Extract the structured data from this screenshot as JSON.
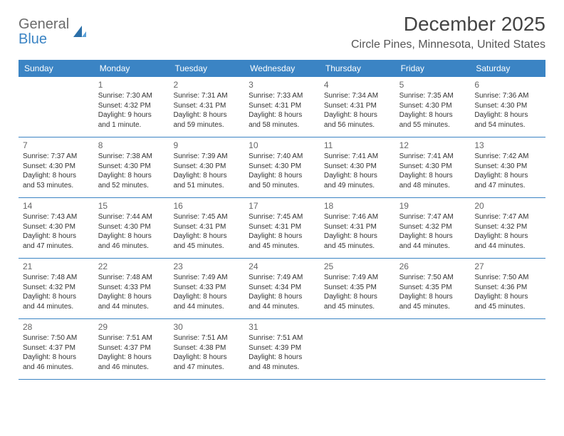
{
  "logo": {
    "gray": "General",
    "blue": "Blue"
  },
  "title": "December 2025",
  "location": "Circle Pines, Minnesota, United States",
  "header_bg": "#3b84c4",
  "dow": [
    "Sunday",
    "Monday",
    "Tuesday",
    "Wednesday",
    "Thursday",
    "Friday",
    "Saturday"
  ],
  "weeks": [
    [
      null,
      {
        "n": "1",
        "sr": "Sunrise: 7:30 AM",
        "ss": "Sunset: 4:32 PM",
        "dl": "Daylight: 9 hours and 1 minute."
      },
      {
        "n": "2",
        "sr": "Sunrise: 7:31 AM",
        "ss": "Sunset: 4:31 PM",
        "dl": "Daylight: 8 hours and 59 minutes."
      },
      {
        "n": "3",
        "sr": "Sunrise: 7:33 AM",
        "ss": "Sunset: 4:31 PM",
        "dl": "Daylight: 8 hours and 58 minutes."
      },
      {
        "n": "4",
        "sr": "Sunrise: 7:34 AM",
        "ss": "Sunset: 4:31 PM",
        "dl": "Daylight: 8 hours and 56 minutes."
      },
      {
        "n": "5",
        "sr": "Sunrise: 7:35 AM",
        "ss": "Sunset: 4:30 PM",
        "dl": "Daylight: 8 hours and 55 minutes."
      },
      {
        "n": "6",
        "sr": "Sunrise: 7:36 AM",
        "ss": "Sunset: 4:30 PM",
        "dl": "Daylight: 8 hours and 54 minutes."
      }
    ],
    [
      {
        "n": "7",
        "sr": "Sunrise: 7:37 AM",
        "ss": "Sunset: 4:30 PM",
        "dl": "Daylight: 8 hours and 53 minutes."
      },
      {
        "n": "8",
        "sr": "Sunrise: 7:38 AM",
        "ss": "Sunset: 4:30 PM",
        "dl": "Daylight: 8 hours and 52 minutes."
      },
      {
        "n": "9",
        "sr": "Sunrise: 7:39 AM",
        "ss": "Sunset: 4:30 PM",
        "dl": "Daylight: 8 hours and 51 minutes."
      },
      {
        "n": "10",
        "sr": "Sunrise: 7:40 AM",
        "ss": "Sunset: 4:30 PM",
        "dl": "Daylight: 8 hours and 50 minutes."
      },
      {
        "n": "11",
        "sr": "Sunrise: 7:41 AM",
        "ss": "Sunset: 4:30 PM",
        "dl": "Daylight: 8 hours and 49 minutes."
      },
      {
        "n": "12",
        "sr": "Sunrise: 7:41 AM",
        "ss": "Sunset: 4:30 PM",
        "dl": "Daylight: 8 hours and 48 minutes."
      },
      {
        "n": "13",
        "sr": "Sunrise: 7:42 AM",
        "ss": "Sunset: 4:30 PM",
        "dl": "Daylight: 8 hours and 47 minutes."
      }
    ],
    [
      {
        "n": "14",
        "sr": "Sunrise: 7:43 AM",
        "ss": "Sunset: 4:30 PM",
        "dl": "Daylight: 8 hours and 47 minutes."
      },
      {
        "n": "15",
        "sr": "Sunrise: 7:44 AM",
        "ss": "Sunset: 4:30 PM",
        "dl": "Daylight: 8 hours and 46 minutes."
      },
      {
        "n": "16",
        "sr": "Sunrise: 7:45 AM",
        "ss": "Sunset: 4:31 PM",
        "dl": "Daylight: 8 hours and 45 minutes."
      },
      {
        "n": "17",
        "sr": "Sunrise: 7:45 AM",
        "ss": "Sunset: 4:31 PM",
        "dl": "Daylight: 8 hours and 45 minutes."
      },
      {
        "n": "18",
        "sr": "Sunrise: 7:46 AM",
        "ss": "Sunset: 4:31 PM",
        "dl": "Daylight: 8 hours and 45 minutes."
      },
      {
        "n": "19",
        "sr": "Sunrise: 7:47 AM",
        "ss": "Sunset: 4:32 PM",
        "dl": "Daylight: 8 hours and 44 minutes."
      },
      {
        "n": "20",
        "sr": "Sunrise: 7:47 AM",
        "ss": "Sunset: 4:32 PM",
        "dl": "Daylight: 8 hours and 44 minutes."
      }
    ],
    [
      {
        "n": "21",
        "sr": "Sunrise: 7:48 AM",
        "ss": "Sunset: 4:32 PM",
        "dl": "Daylight: 8 hours and 44 minutes."
      },
      {
        "n": "22",
        "sr": "Sunrise: 7:48 AM",
        "ss": "Sunset: 4:33 PM",
        "dl": "Daylight: 8 hours and 44 minutes."
      },
      {
        "n": "23",
        "sr": "Sunrise: 7:49 AM",
        "ss": "Sunset: 4:33 PM",
        "dl": "Daylight: 8 hours and 44 minutes."
      },
      {
        "n": "24",
        "sr": "Sunrise: 7:49 AM",
        "ss": "Sunset: 4:34 PM",
        "dl": "Daylight: 8 hours and 44 minutes."
      },
      {
        "n": "25",
        "sr": "Sunrise: 7:49 AM",
        "ss": "Sunset: 4:35 PM",
        "dl": "Daylight: 8 hours and 45 minutes."
      },
      {
        "n": "26",
        "sr": "Sunrise: 7:50 AM",
        "ss": "Sunset: 4:35 PM",
        "dl": "Daylight: 8 hours and 45 minutes."
      },
      {
        "n": "27",
        "sr": "Sunrise: 7:50 AM",
        "ss": "Sunset: 4:36 PM",
        "dl": "Daylight: 8 hours and 45 minutes."
      }
    ],
    [
      {
        "n": "28",
        "sr": "Sunrise: 7:50 AM",
        "ss": "Sunset: 4:37 PM",
        "dl": "Daylight: 8 hours and 46 minutes."
      },
      {
        "n": "29",
        "sr": "Sunrise: 7:51 AM",
        "ss": "Sunset: 4:37 PM",
        "dl": "Daylight: 8 hours and 46 minutes."
      },
      {
        "n": "30",
        "sr": "Sunrise: 7:51 AM",
        "ss": "Sunset: 4:38 PM",
        "dl": "Daylight: 8 hours and 47 minutes."
      },
      {
        "n": "31",
        "sr": "Sunrise: 7:51 AM",
        "ss": "Sunset: 4:39 PM",
        "dl": "Daylight: 8 hours and 48 minutes."
      },
      null,
      null,
      null
    ]
  ]
}
